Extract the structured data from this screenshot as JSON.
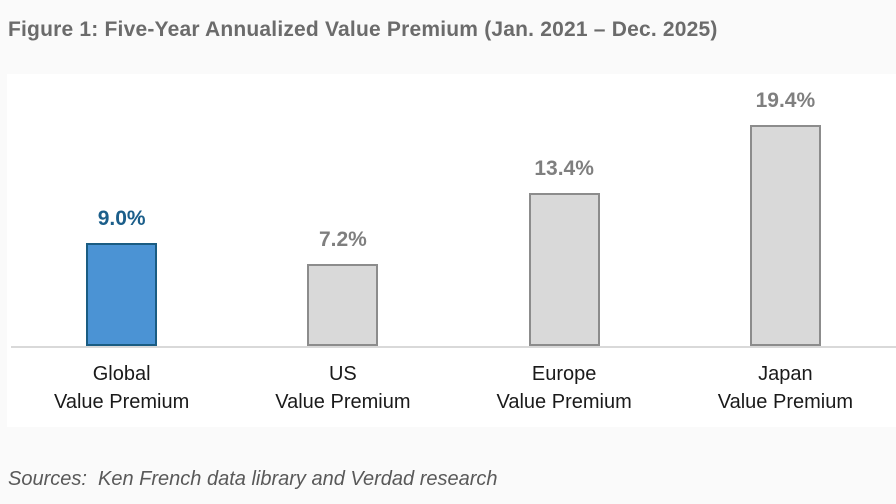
{
  "title": "Figure 1: Five-Year Annualized Value Premium (Jan. 2021 – Dec. 2025)",
  "footer": "Sources:  Ken French data library and Verdad research",
  "chart_data": {
    "type": "bar",
    "title": "Figure 1: Five-Year Annualized Value Premium (Jan. 2021 – Dec. 2025)",
    "categories": [
      "Global\nValue Premium",
      "US\nValue Premium",
      "Europe\nValue Premium",
      "Japan\nValue Premium"
    ],
    "values": [
      9.0,
      7.2,
      13.4,
      19.4
    ],
    "value_labels": [
      "9.0%",
      "7.2%",
      "13.4%",
      "19.4%"
    ],
    "xlabel": "",
    "ylabel": "",
    "ylim": [
      0,
      24
    ],
    "grid": false,
    "legend": false,
    "highlight_index": 0,
    "colors": {
      "highlight_fill": "#4b93d4",
      "highlight_border": "#1a5c82",
      "highlight_label": "#1b5e8a",
      "default_fill": "#d9d9d9",
      "default_border": "#8c8c8c",
      "default_label": "#7f7f7f",
      "axis_line": "#d9d9d9",
      "title_text": "#6b6b6b",
      "footer_text": "#595959",
      "category_text": "#1a1a1a",
      "panel_background": "#ffffff",
      "page_background": "#fafafa"
    }
  }
}
